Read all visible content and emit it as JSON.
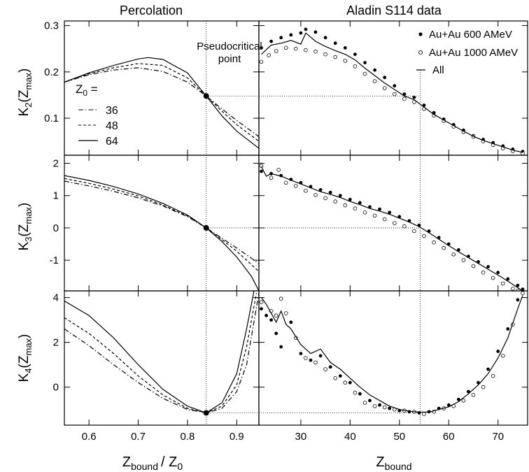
{
  "panel_titles": {
    "left": "Percolation",
    "right": "Aladin S114 data"
  },
  "ylabels": [
    {
      "main": "K",
      "sub": "2",
      "open": "(Z",
      "sub2": "max",
      "close": ")"
    },
    {
      "main": "K",
      "sub": "3",
      "open": "(Z",
      "sub2": "max",
      "close": ")"
    },
    {
      "main": "K",
      "sub": "4",
      "open": "(Z",
      "sub2": "max",
      "close": ")"
    }
  ],
  "xlabels": {
    "left": {
      "z": "Z",
      "sub": "bound",
      "rest": "/ Z",
      "sub2": "0"
    },
    "right": {
      "z": "Z",
      "sub": "bound"
    }
  },
  "annotation": {
    "line1": "Pseudocritical",
    "line2": "point"
  },
  "percolation_legend": {
    "title": "Z",
    "title_sub": "0",
    "title_eq": " =",
    "entries": [
      {
        "label": "36",
        "style": "dashdot"
      },
      {
        "label": "48",
        "style": "dashed"
      },
      {
        "label": "64",
        "style": "solid"
      }
    ]
  },
  "data_legend": {
    "entries": [
      {
        "label": "Au+Au  600 AMeV",
        "marker": "filled-circle"
      },
      {
        "label": "Au+Au 1000 AMeV",
        "marker": "open-circle"
      },
      {
        "label": "All",
        "marker": "line"
      }
    ]
  },
  "chart_data": [
    {
      "type": "line",
      "panel": "percolation-k2",
      "xlim": [
        0.55,
        0.945
      ],
      "ylim": [
        0.02,
        0.31
      ],
      "xticks": [
        0.6,
        0.7,
        0.8,
        0.9
      ],
      "yticks": [
        0.1,
        0.2,
        0.3
      ],
      "yticklabels": [
        "0.1",
        "0.2",
        "0.3"
      ],
      "pseudocritical": {
        "x": 0.838,
        "y": 0.148
      },
      "series": [
        {
          "name": "36",
          "style": "dashdot",
          "x": [
            0.55,
            0.6,
            0.65,
            0.7,
            0.75,
            0.8,
            0.838,
            0.87,
            0.9,
            0.945
          ],
          "y": [
            0.178,
            0.194,
            0.204,
            0.209,
            0.201,
            0.178,
            0.148,
            0.12,
            0.095,
            0.06
          ]
        },
        {
          "name": "48",
          "style": "dashed",
          "x": [
            0.55,
            0.6,
            0.65,
            0.7,
            0.75,
            0.8,
            0.838,
            0.87,
            0.9,
            0.945
          ],
          "y": [
            0.178,
            0.196,
            0.209,
            0.218,
            0.214,
            0.187,
            0.148,
            0.115,
            0.086,
            0.05
          ]
        },
        {
          "name": "64",
          "style": "solid",
          "x": [
            0.55,
            0.6,
            0.65,
            0.7,
            0.72,
            0.75,
            0.8,
            0.838,
            0.87,
            0.9,
            0.945
          ],
          "y": [
            0.178,
            0.198,
            0.214,
            0.228,
            0.231,
            0.227,
            0.198,
            0.148,
            0.105,
            0.072,
            0.035
          ]
        }
      ]
    },
    {
      "type": "line",
      "panel": "percolation-k3",
      "xlim": [
        0.55,
        0.945
      ],
      "ylim": [
        -1.95,
        2.25
      ],
      "xticks": [
        0.6,
        0.7,
        0.8,
        0.9
      ],
      "yticks": [
        -1,
        0,
        1,
        2
      ],
      "yticklabels": [
        "-1",
        "0",
        "1",
        "2"
      ],
      "pseudocritical": {
        "x": 0.838,
        "y": 0.0
      },
      "series": [
        {
          "name": "36",
          "style": "dashdot",
          "x": [
            0.55,
            0.6,
            0.65,
            0.7,
            0.75,
            0.8,
            0.838,
            0.87,
            0.9,
            0.945
          ],
          "y": [
            1.45,
            1.3,
            1.13,
            0.93,
            0.68,
            0.35,
            0.0,
            -0.32,
            -0.62,
            -1.1
          ]
        },
        {
          "name": "48",
          "style": "dashed",
          "x": [
            0.55,
            0.6,
            0.65,
            0.7,
            0.75,
            0.8,
            0.838,
            0.87,
            0.9,
            0.945
          ],
          "y": [
            1.53,
            1.38,
            1.2,
            0.99,
            0.71,
            0.37,
            0.0,
            -0.36,
            -0.72,
            -1.35
          ]
        },
        {
          "name": "64",
          "style": "solid",
          "x": [
            0.55,
            0.6,
            0.65,
            0.7,
            0.75,
            0.8,
            0.838,
            0.87,
            0.9,
            0.93,
            0.945
          ],
          "y": [
            1.62,
            1.47,
            1.28,
            1.05,
            0.76,
            0.4,
            0.0,
            -0.42,
            -0.9,
            -1.5,
            -1.95
          ]
        }
      ]
    },
    {
      "type": "line",
      "panel": "percolation-k4",
      "xlim": [
        0.55,
        0.945
      ],
      "ylim": [
        -1.7,
        4.3
      ],
      "xticks": [
        0.6,
        0.7,
        0.8,
        0.9
      ],
      "yticks": [
        0,
        2,
        4
      ],
      "yticklabels": [
        "0",
        "2",
        "4"
      ],
      "xticklabels": [
        "0.6",
        "0.7",
        "0.8",
        "0.9"
      ],
      "pseudocritical": {
        "x": 0.838,
        "y": -1.15
      },
      "series": [
        {
          "name": "36",
          "style": "dashdot",
          "x": [
            0.55,
            0.6,
            0.65,
            0.7,
            0.75,
            0.8,
            0.838,
            0.87,
            0.9,
            0.92,
            0.945
          ],
          "y": [
            2.6,
            1.85,
            1.0,
            0.2,
            -0.5,
            -1.0,
            -1.15,
            -0.95,
            -0.2,
            1.0,
            4.2
          ]
        },
        {
          "name": "48",
          "style": "dashed",
          "x": [
            0.55,
            0.6,
            0.65,
            0.7,
            0.75,
            0.8,
            0.838,
            0.87,
            0.9,
            0.92,
            0.94
          ],
          "y": [
            3.1,
            2.4,
            1.5,
            0.5,
            -0.35,
            -0.95,
            -1.15,
            -0.85,
            0.1,
            1.8,
            4.2
          ]
        },
        {
          "name": "64",
          "style": "solid",
          "x": [
            0.55,
            0.6,
            0.65,
            0.7,
            0.75,
            0.8,
            0.838,
            0.87,
            0.9,
            0.92,
            0.935
          ],
          "y": [
            3.85,
            3.2,
            2.2,
            1.0,
            -0.1,
            -0.85,
            -1.15,
            -0.7,
            0.6,
            2.6,
            4.3
          ]
        }
      ]
    },
    {
      "type": "scatter",
      "panel": "data-k2",
      "xlim": [
        21.5,
        76
      ],
      "ylim": [
        0.02,
        0.31
      ],
      "xticks": [
        30,
        40,
        50,
        60,
        70
      ],
      "yticks": [
        0.1,
        0.2,
        0.3
      ],
      "pseudocritical": {
        "x": 54.2,
        "y": 0.148
      },
      "series": [
        {
          "name": "Au+Au  600 AMeV",
          "marker": "filled",
          "x": [
            22,
            24,
            26,
            28,
            30,
            31,
            33,
            35,
            37,
            39,
            41,
            43,
            45,
            47,
            49,
            51,
            53,
            55,
            57,
            59,
            61,
            63,
            65,
            67,
            69,
            71,
            73,
            75
          ],
          "y": [
            0.252,
            0.266,
            0.274,
            0.28,
            0.284,
            0.292,
            0.286,
            0.274,
            0.262,
            0.252,
            0.238,
            0.22,
            0.204,
            0.188,
            0.17,
            0.152,
            0.145,
            0.128,
            0.112,
            0.098,
            0.086,
            0.074,
            0.062,
            0.054,
            0.047,
            0.04,
            0.033,
            0.028
          ]
        },
        {
          "name": "Au+Au 1000 AMeV",
          "marker": "open",
          "x": [
            22,
            23.5,
            25,
            27,
            29,
            31,
            33,
            35,
            37,
            39,
            41,
            43,
            45,
            47,
            49,
            51,
            53,
            55,
            57,
            59,
            61,
            63,
            65,
            67,
            69,
            71,
            73,
            75
          ],
          "y": [
            0.222,
            0.236,
            0.245,
            0.252,
            0.25,
            0.247,
            0.244,
            0.238,
            0.232,
            0.224,
            0.212,
            0.196,
            0.18,
            0.165,
            0.152,
            0.142,
            0.135,
            0.12,
            0.106,
            0.094,
            0.082,
            0.07,
            0.06,
            0.05,
            0.042,
            0.035,
            0.029,
            0.024
          ]
        },
        {
          "name": "All",
          "marker": "line",
          "x": [
            22,
            24,
            26,
            28,
            30,
            31,
            33,
            35,
            37,
            39,
            41,
            43,
            45,
            47,
            49,
            51,
            53,
            55,
            57,
            59,
            61,
            63,
            65,
            67,
            69,
            71,
            73,
            75
          ],
          "y": [
            0.238,
            0.258,
            0.262,
            0.268,
            0.26,
            0.284,
            0.266,
            0.255,
            0.246,
            0.238,
            0.226,
            0.208,
            0.192,
            0.176,
            0.162,
            0.148,
            0.14,
            0.124,
            0.108,
            0.096,
            0.084,
            0.072,
            0.061,
            0.052,
            0.045,
            0.038,
            0.031,
            0.026
          ]
        }
      ]
    },
    {
      "type": "scatter",
      "panel": "data-k3",
      "xlim": [
        21.5,
        76
      ],
      "ylim": [
        -1.95,
        2.25
      ],
      "xticks": [
        30,
        40,
        50,
        60,
        70
      ],
      "yticks": [
        -1,
        0,
        1,
        2
      ],
      "pseudocritical": {
        "x": 54.2,
        "y": 0.0
      },
      "series": [
        {
          "name": "Au+Au  600 AMeV",
          "marker": "filled",
          "x": [
            22,
            24,
            26,
            28,
            30,
            32,
            34,
            36,
            38,
            40,
            42,
            44,
            46,
            48,
            50,
            52,
            54,
            56,
            58,
            60,
            62,
            64,
            66,
            68,
            70,
            72,
            74,
            75
          ],
          "y": [
            1.75,
            1.68,
            1.62,
            1.5,
            1.4,
            1.28,
            1.18,
            1.1,
            1.0,
            0.88,
            0.78,
            0.65,
            0.58,
            0.48,
            0.35,
            0.22,
            0.08,
            -0.1,
            -0.3,
            -0.5,
            -0.68,
            -0.88,
            -1.05,
            -1.2,
            -1.38,
            -1.58,
            -1.78,
            -1.9
          ]
        },
        {
          "name": "Au+Au 1000 AMeV",
          "marker": "open",
          "x": [
            22,
            24,
            25.5,
            27,
            29,
            31,
            33,
            35,
            37,
            39,
            41,
            43,
            45,
            47,
            49,
            51,
            53,
            55,
            57,
            59,
            61,
            63,
            65,
            67,
            69,
            71,
            73,
            74
          ],
          "y": [
            1.92,
            1.55,
            1.8,
            1.4,
            1.3,
            1.15,
            1.02,
            0.92,
            0.82,
            0.7,
            0.6,
            0.48,
            0.38,
            0.27,
            0.15,
            0.05,
            -0.1,
            -0.25,
            -0.45,
            -0.62,
            -0.82,
            -1.0,
            -1.18,
            -1.38,
            -1.55,
            -1.72,
            -1.88,
            -1.95
          ]
        },
        {
          "name": "All",
          "marker": "line",
          "x": [
            22,
            23,
            24,
            26,
            28,
            30,
            32,
            34,
            36,
            38,
            40,
            42,
            44,
            46,
            48,
            50,
            52,
            54,
            56,
            58,
            60,
            62,
            64,
            66,
            68,
            70,
            72,
            74,
            75
          ],
          "y": [
            1.9,
            1.6,
            1.68,
            1.6,
            1.48,
            1.36,
            1.24,
            1.12,
            1.04,
            0.94,
            0.82,
            0.72,
            0.6,
            0.52,
            0.42,
            0.3,
            0.18,
            0.04,
            -0.15,
            -0.35,
            -0.55,
            -0.74,
            -0.92,
            -1.1,
            -1.28,
            -1.46,
            -1.65,
            -1.85,
            -1.95
          ]
        }
      ]
    },
    {
      "type": "scatter",
      "panel": "data-k4",
      "xlim": [
        21.5,
        76
      ],
      "ylim": [
        -1.7,
        4.3
      ],
      "xticks": [
        30,
        40,
        50,
        60,
        70
      ],
      "yticks": [
        0,
        2,
        4
      ],
      "xticklabels": [
        "30",
        "40",
        "50",
        "60",
        "70"
      ],
      "pseudocritical": {
        "x": 54.2,
        "y": -1.15
      },
      "series": [
        {
          "name": "Au+Au  600 AMeV",
          "marker": "filled",
          "x": [
            22,
            23,
            24,
            25,
            26,
            28,
            30,
            32,
            34,
            36,
            38,
            40,
            42,
            44,
            46,
            48,
            50,
            52,
            54,
            56,
            58,
            60,
            62,
            64,
            66,
            68,
            70,
            72,
            74
          ],
          "y": [
            3.5,
            3.2,
            3.0,
            2.4,
            1.8,
            2.9,
            1.5,
            1.2,
            1.4,
            0.9,
            0.5,
            0.2,
            -0.3,
            -0.6,
            -0.8,
            -0.95,
            -1.05,
            -1.1,
            -1.15,
            -1.1,
            -0.95,
            -0.8,
            -0.55,
            -0.2,
            0.2,
            0.8,
            1.6,
            2.6,
            3.9
          ]
        },
        {
          "name": "Au+Au 1000 AMeV",
          "marker": "open",
          "x": [
            22,
            24,
            25,
            26,
            27,
            29,
            31,
            33,
            35,
            37,
            39,
            41,
            43,
            45,
            47,
            49,
            51,
            53,
            55,
            57,
            59,
            61,
            63,
            65,
            67,
            69,
            71,
            73,
            75
          ],
          "y": [
            3.8,
            3.4,
            3.2,
            3.95,
            3.3,
            2.2,
            1.3,
            1.1,
            0.8,
            0.4,
            0.2,
            -0.25,
            -0.7,
            -0.85,
            -0.9,
            -1.0,
            -1.05,
            -1.1,
            -1.2,
            -1.1,
            -0.95,
            -0.85,
            -0.6,
            -0.35,
            0.0,
            0.5,
            1.4,
            2.8,
            4.2
          ]
        },
        {
          "name": "All",
          "marker": "line",
          "x": [
            22,
            23,
            24,
            25,
            26,
            27,
            28,
            30,
            32,
            34,
            36,
            38,
            40,
            42,
            44,
            46,
            48,
            50,
            52,
            54,
            56,
            58,
            60,
            62,
            64,
            66,
            68,
            70,
            72,
            74,
            75
          ],
          "y": [
            4.0,
            3.7,
            3.3,
            2.9,
            3.4,
            2.8,
            2.6,
            1.9,
            1.5,
            1.7,
            1.1,
            0.8,
            0.4,
            0.0,
            -0.35,
            -0.6,
            -0.85,
            -1.0,
            -1.08,
            -1.12,
            -1.12,
            -1.0,
            -0.88,
            -0.65,
            -0.3,
            0.1,
            0.6,
            1.3,
            2.2,
            3.5,
            4.1
          ]
        }
      ]
    }
  ]
}
